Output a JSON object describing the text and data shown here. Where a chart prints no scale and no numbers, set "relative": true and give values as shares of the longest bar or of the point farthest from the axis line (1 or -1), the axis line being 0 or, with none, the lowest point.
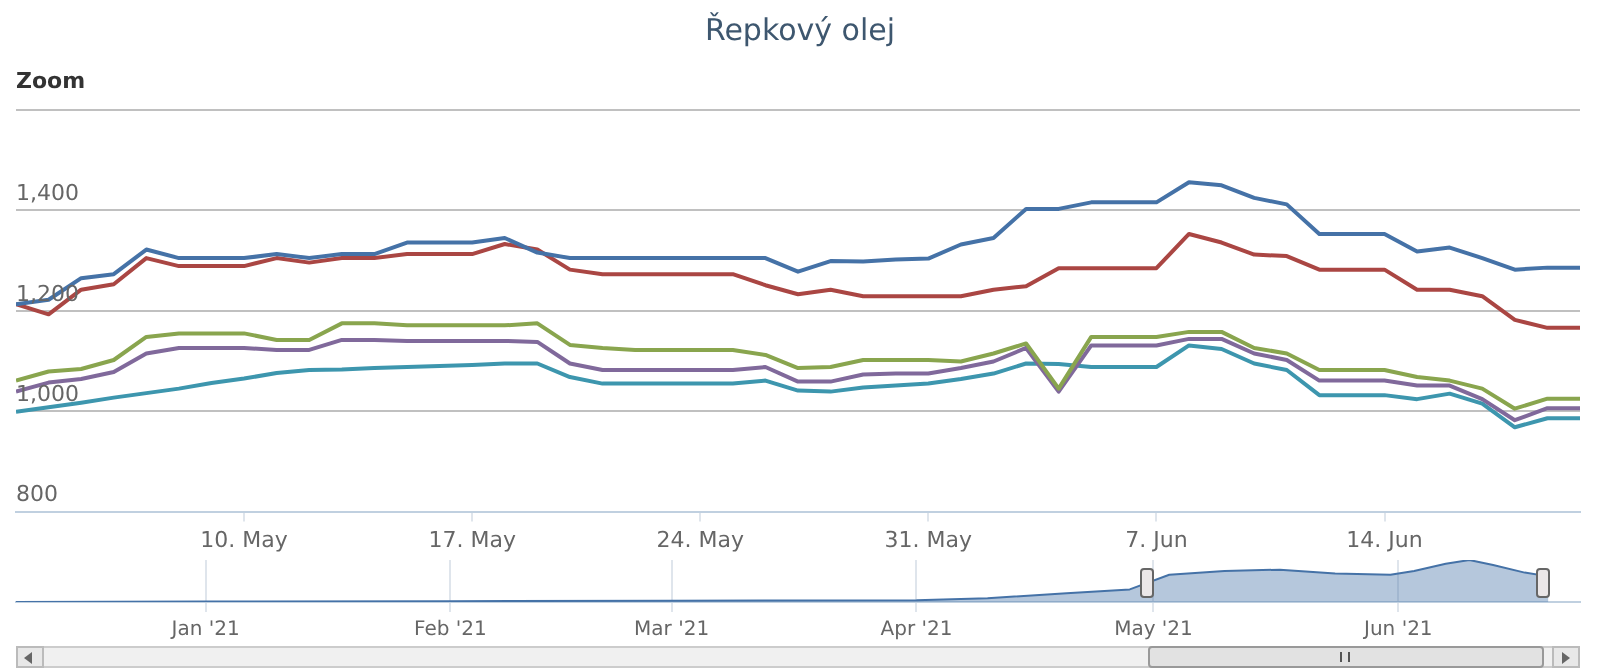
{
  "chart_data": [
    {
      "type": "line",
      "title": "Řepkový olej",
      "annotations": [
        "Zoom"
      ],
      "x": [
        "2021-05-03",
        "2021-05-04",
        "2021-05-05",
        "2021-05-06",
        "2021-05-07",
        "2021-05-08",
        "2021-05-09",
        "2021-05-10",
        "2021-05-11",
        "2021-05-12",
        "2021-05-13",
        "2021-05-14",
        "2021-05-15",
        "2021-05-16",
        "2021-05-17",
        "2021-05-18",
        "2021-05-19",
        "2021-05-20",
        "2021-05-21",
        "2021-05-22",
        "2021-05-23",
        "2021-05-24",
        "2021-05-25",
        "2021-05-26",
        "2021-05-27",
        "2021-05-28",
        "2021-05-29",
        "2021-05-30",
        "2021-05-31",
        "2021-06-01",
        "2021-06-02",
        "2021-06-03",
        "2021-06-04",
        "2021-06-05",
        "2021-06-06",
        "2021-06-07",
        "2021-06-08",
        "2021-06-09",
        "2021-06-10",
        "2021-06-11",
        "2021-06-12",
        "2021-06-13",
        "2021-06-14",
        "2021-06-15",
        "2021-06-16",
        "2021-06-17",
        "2021-06-18",
        "2021-06-19",
        "2021-06-20"
      ],
      "series": [
        {
          "color": "#4572a7",
          "values": [
            1213,
            1222,
            1265,
            1273,
            1322,
            1305,
            1305,
            1305,
            1313,
            1305,
            1313,
            1313,
            1336,
            1336,
            1336,
            1345,
            1316,
            1305,
            1305,
            1305,
            1305,
            1305,
            1305,
            1305,
            1278,
            1299,
            1298,
            1302,
            1304,
            1332,
            1345,
            1403,
            1403,
            1416,
            1416,
            1416,
            1456,
            1450,
            1425,
            1412,
            1353,
            1353,
            1353,
            1318,
            1326,
            1305,
            1282,
            1286,
            1286
          ]
        },
        {
          "color": "#aa4643",
          "values": [
            1213,
            1193,
            1242,
            1253,
            1305,
            1289,
            1289,
            1289,
            1305,
            1296,
            1305,
            1305,
            1313,
            1313,
            1313,
            1333,
            1322,
            1282,
            1273,
            1273,
            1273,
            1273,
            1273,
            1251,
            1233,
            1242,
            1229,
            1229,
            1229,
            1229,
            1242,
            1249,
            1285,
            1285,
            1285,
            1285,
            1353,
            1336,
            1312,
            1309,
            1282,
            1282,
            1282,
            1242,
            1242,
            1229,
            1182,
            1166,
            1166
          ]
        },
        {
          "color": "#89a54e",
          "values": [
            1061,
            1079,
            1084,
            1102,
            1148,
            1155,
            1155,
            1155,
            1142,
            1142,
            1175,
            1175,
            1171,
            1171,
            1171,
            1171,
            1175,
            1132,
            1126,
            1122,
            1122,
            1122,
            1122,
            1112,
            1086,
            1088,
            1102,
            1102,
            1102,
            1099,
            1115,
            1135,
            1045,
            1148,
            1148,
            1148,
            1158,
            1158,
            1126,
            1115,
            1082,
            1082,
            1082,
            1068,
            1061,
            1045,
            1005,
            1025,
            1025
          ]
        },
        {
          "color": "#80699b",
          "values": [
            1039,
            1057,
            1064,
            1078,
            1115,
            1126,
            1126,
            1126,
            1122,
            1122,
            1142,
            1142,
            1140,
            1140,
            1140,
            1140,
            1138,
            1095,
            1082,
            1082,
            1082,
            1082,
            1082,
            1088,
            1059,
            1059,
            1073,
            1075,
            1075,
            1086,
            1099,
            1126,
            1039,
            1131,
            1131,
            1131,
            1144,
            1144,
            1115,
            1102,
            1061,
            1061,
            1061,
            1051,
            1051,
            1024,
            982,
            1006,
            1006
          ]
        },
        {
          "color": "#3d96ae",
          "values": [
            999,
            1008,
            1017,
            1027,
            1036,
            1045,
            1056,
            1065,
            1076,
            1082,
            1083,
            1086,
            1088,
            1090,
            1092,
            1095,
            1095,
            1068,
            1055,
            1055,
            1055,
            1055,
            1055,
            1061,
            1041,
            1039,
            1047,
            1051,
            1055,
            1064,
            1075,
            1095,
            1094,
            1088,
            1088,
            1088,
            1131,
            1124,
            1095,
            1082,
            1032,
            1032,
            1032,
            1024,
            1035,
            1015,
            968,
            986,
            986
          ]
        }
      ],
      "xlim": [
        "2021-05-03",
        "2021-06-20"
      ],
      "xticks": [
        {
          "value": "2021-05-10",
          "label": "10. May"
        },
        {
          "value": "2021-05-17",
          "label": "17. May"
        },
        {
          "value": "2021-05-24",
          "label": "24. May"
        },
        {
          "value": "2021-05-31",
          "label": "31. May"
        },
        {
          "value": "2021-06-07",
          "label": "7. Jun"
        },
        {
          "value": "2021-06-14",
          "label": "14. Jun"
        }
      ],
      "ylim": [
        800,
        1600
      ],
      "yticks": [
        800,
        {
          "value": 1000,
          "label": "1,000"
        },
        {
          "value": 1200,
          "label": "1,200"
        },
        {
          "value": 1400,
          "label": "1,400"
        },
        {
          "value": 1600,
          "label": null
        }
      ],
      "grid": "y",
      "legend": false,
      "marker": "none",
      "line_style": "solid"
    },
    {
      "type": "area",
      "relative": true,
      "color": "#4572a7",
      "x": [
        "2020-12-08",
        "2021-01-01",
        "2021-02-01",
        "2021-03-01",
        "2021-04-01",
        "2021-04-10",
        "2021-04-20",
        "2021-04-28",
        "2021-05-03",
        "2021-05-10",
        "2021-05-17",
        "2021-05-24",
        "2021-05-31",
        "2021-06-03",
        "2021-06-07",
        "2021-06-10",
        "2021-06-13",
        "2021-06-17",
        "2021-06-20"
      ],
      "values": [
        0,
        0.01,
        0.02,
        0.03,
        0.04,
        0.09,
        0.21,
        0.3,
        0.65,
        0.74,
        0.77,
        0.68,
        0.65,
        0.74,
        0.91,
        1,
        0.88,
        0.7,
        0.61
      ],
      "xlim": [
        "2020-12-08",
        "2021-06-24"
      ],
      "xticks": [
        {
          "value": "2021-01-01",
          "label": "Jan '21"
        },
        {
          "value": "2021-02-01",
          "label": "Feb '21"
        },
        {
          "value": "2021-03-01",
          "label": "Mar '21"
        },
        {
          "value": "2021-04-01",
          "label": "Apr '21"
        },
        {
          "value": "2021-05-01",
          "label": "May '21"
        },
        {
          "value": "2021-06-01",
          "label": "Jun '21"
        }
      ],
      "grid": "x",
      "legend": false,
      "marker": "none"
    }
  ]
}
